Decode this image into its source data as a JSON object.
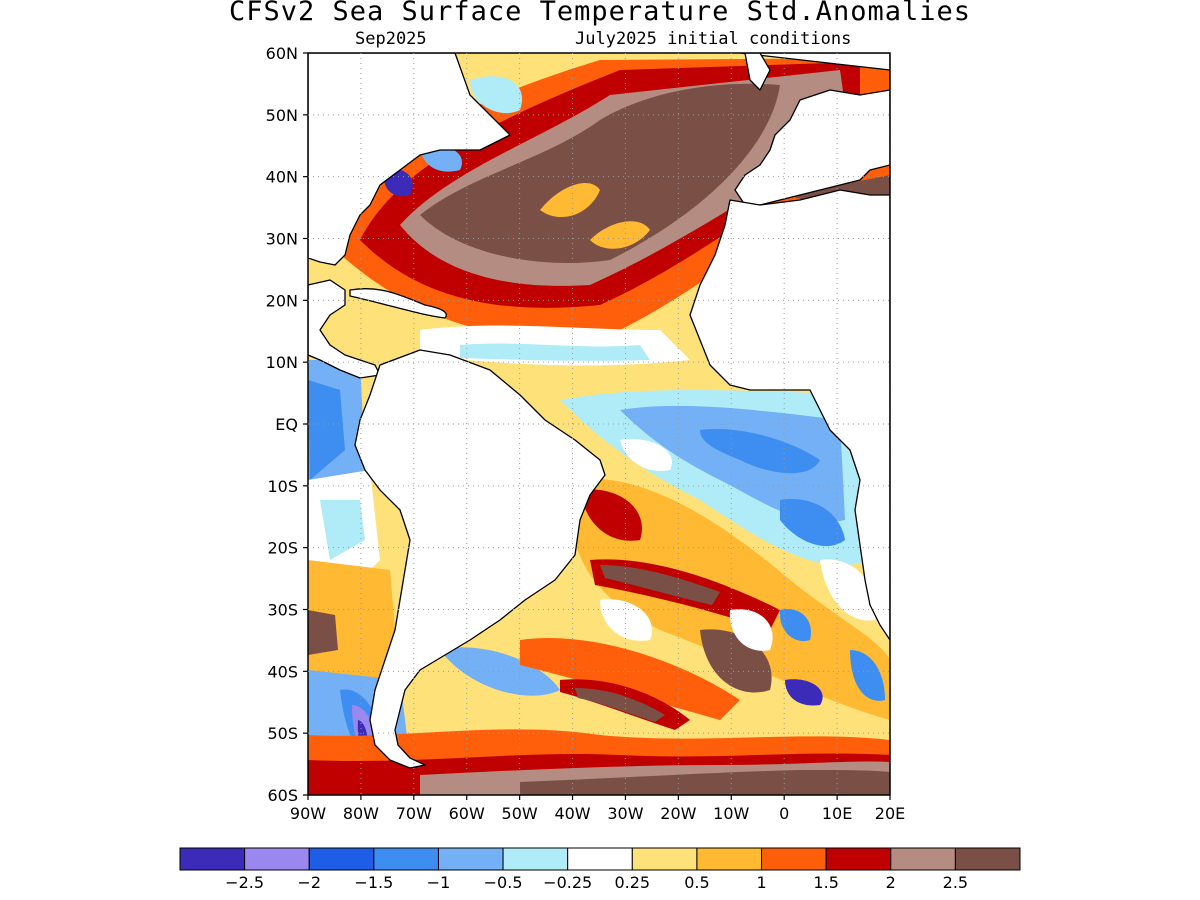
{
  "header": {
    "title": "CFSv2 Sea Surface Temperature Std.Anomalies",
    "valid_month": "Sep2025",
    "initial_conditions": "July2025 initial conditions"
  },
  "axes": {
    "lat_labels": [
      "60N",
      "50N",
      "40N",
      "30N",
      "20N",
      "10N",
      "EQ",
      "10S",
      "20S",
      "30S",
      "40S",
      "50S",
      "60S"
    ],
    "lat_values": [
      60,
      50,
      40,
      30,
      20,
      10,
      0,
      -10,
      -20,
      -30,
      -40,
      -50,
      -60
    ],
    "lon_labels": [
      "90W",
      "80W",
      "70W",
      "60W",
      "50W",
      "40W",
      "30W",
      "20W",
      "10W",
      "0",
      "10E",
      "20E"
    ],
    "lon_values": [
      -90,
      -80,
      -70,
      -60,
      -50,
      -40,
      -30,
      -20,
      -10,
      0,
      10,
      20
    ],
    "lon_range": [
      -90,
      20
    ],
    "lat_range": [
      -60,
      60
    ],
    "grid": "dotted"
  },
  "colorbar": {
    "colors": [
      "#3c2bb9",
      "#9a87f0",
      "#1e5ee6",
      "#3d8ef0",
      "#73b0f5",
      "#b0ecf7",
      "#ffffff",
      "#ffe17a",
      "#ffb932",
      "#ff5f0a",
      "#c00000",
      "#b48c82",
      "#7a5046"
    ],
    "labels": [
      "−2.5",
      "−2",
      "−1.5",
      "−1",
      "−0.5",
      "−0.25",
      "0.25",
      "0.5",
      "1",
      "1.5",
      "2",
      "2.5"
    ]
  },
  "regions": {
    "land_color": "#ffffff",
    "ocean_color": "#ffe17a"
  }
}
